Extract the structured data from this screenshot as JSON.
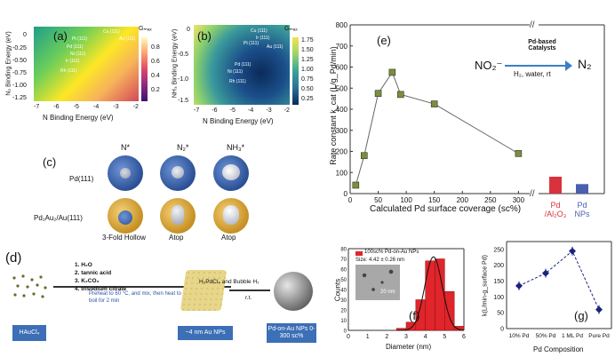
{
  "panel_a": {
    "letter": "(a)",
    "xlabel": "N Binding Energy (eV)",
    "ylabel": "N₂ Binding Energy (eV)",
    "xticks": [
      "-7",
      "-6",
      "-5",
      "-4",
      "-3",
      "-2"
    ],
    "yticks": [
      "0",
      "-0.25",
      "-0.50",
      "-0.75",
      "-1.00",
      "-1.25"
    ],
    "cbar_title": "Gₘₐₓ",
    "cbar_ticks": [
      "0.8",
      "0.6",
      "0.4",
      "0.2"
    ],
    "points": [
      "Cu (111)",
      "Au (111)",
      "Pt (111)",
      "Pd (111)",
      "Ni (111)",
      "Ir (111)",
      "Rh (111)"
    ]
  },
  "panel_b": {
    "letter": "(b)",
    "xlabel": "N Binding Energy (eV)",
    "ylabel": "NH₃ Binding Energy (eV)",
    "xticks": [
      "-7",
      "-6",
      "-5",
      "-4",
      "-3",
      "-2"
    ],
    "yticks": [
      "0",
      "-0.5",
      "-1.0",
      "-1.5"
    ],
    "cbar_title": "Gₘₐₓ",
    "cbar_ticks": [
      "1.75",
      "1.50",
      "1.25",
      "1.00",
      "0.75",
      "0.50",
      "0.25"
    ],
    "points": [
      "Cu (111)",
      "Ir (111)",
      "Pt (111)",
      "Au (111)",
      "Pd (111)",
      "Ni (111)",
      "Rh (111)"
    ]
  },
  "panel_c": {
    "letter": "(c)",
    "col_labels": [
      "N*",
      "N₂*",
      "NH₃*"
    ],
    "row_labels": [
      "Pd(111)",
      "Pd₁Au₂/Au(111)"
    ],
    "site_labels": [
      "3-Fold Hollow",
      "Atop",
      "Atop"
    ]
  },
  "panel_d": {
    "letter": "(d)",
    "start_label": "HAuCl₄",
    "steps": [
      "1. H₂O",
      "2. tannic acid",
      "3. K₂CO₃",
      "4. trisodium citrate"
    ],
    "note": "Preheat to 60 °C, and mix, then heat to boil for 2 min",
    "mid_label": "~4 nm Au NPs",
    "reagent": "H₂PdCl₄ and Bubble H₂",
    "condition": "r.t.",
    "end_label": "Pd-on-Au NPs 0-300 sc%"
  },
  "panel_e": {
    "letter": "(e)",
    "ylabel": "Rate constant k_cat (L/g_Pd/min)",
    "xlabel": "Calculated Pd surface coverage (sc%)",
    "reaction_left": "NO₂⁻",
    "reaction_right": "N₂",
    "catalyst_label": "Pd-based Catalysts",
    "conditions": "H₂, water, rt",
    "yticks": [
      "0",
      "100",
      "200",
      "300",
      "400",
      "500",
      "600",
      "700",
      "800"
    ],
    "xticks": [
      "0",
      "50",
      "100",
      "150",
      "200",
      "250",
      "300"
    ],
    "ref_labels": [
      "Pd /Al₂O₃",
      "Pd NPs"
    ],
    "ref_colors": [
      "#d9323c",
      "#4a5fb0"
    ]
  },
  "panel_f": {
    "letter": "(f)",
    "legend": "100sc% Pd-on-Au NPs",
    "size_text": "Size: 4.42 ± 0.26 nm",
    "scalebar": "20 nm",
    "xlabel": "Diameter (nm)",
    "ylabel": "Counts",
    "xticks": [
      "0",
      "1",
      "2",
      "3",
      "4",
      "5",
      "6"
    ],
    "yticks": [
      "0",
      "10",
      "20",
      "30",
      "40",
      "50",
      "60",
      "70",
      "80"
    ]
  },
  "panel_g": {
    "letter": "(g)",
    "xlabel": "Pd Composition",
    "ylabel": "k(L/min-g_surface Pd)",
    "yticks": [
      "0",
      "50",
      "100",
      "150",
      "200",
      "250"
    ]
  },
  "chart_data": [
    {
      "type": "line",
      "panel": "e",
      "x": [
        10,
        25,
        50,
        75,
        90,
        150,
        300
      ],
      "y": [
        40,
        180,
        475,
        575,
        470,
        425,
        190
      ],
      "xlim": [
        0,
        320
      ],
      "ylim": [
        0,
        800
      ],
      "bars": [
        {
          "label": "Pd /Al₂O₃",
          "value": 80
        },
        {
          "label": "Pd NPs",
          "value": 45
        }
      ]
    },
    {
      "type": "bar",
      "panel": "f",
      "bin_edges": [
        2.5,
        3.0,
        3.5,
        4.0,
        4.5,
        5.0,
        5.5,
        6.0
      ],
      "values": [
        2,
        8,
        30,
        68,
        70,
        38,
        4
      ],
      "xlim": [
        0,
        6
      ],
      "ylim": [
        0,
        80
      ]
    },
    {
      "type": "scatter",
      "panel": "g",
      "categories": [
        "10% Pd",
        "50% Pd",
        "1 ML Pd",
        "Pure Pd"
      ],
      "values": [
        135,
        175,
        245,
        60
      ],
      "ylim": [
        0,
        275
      ]
    }
  ]
}
